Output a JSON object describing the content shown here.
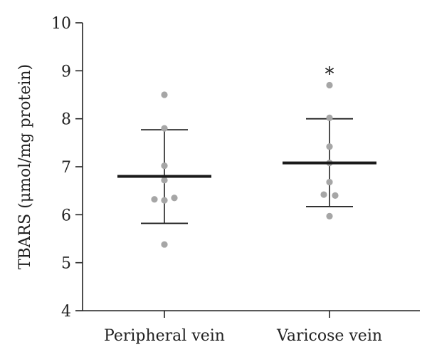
{
  "chart_data": {
    "type": "scatter",
    "ylabel": "TBARS (μmol/mg protein)",
    "ylim": [
      4,
      10
    ],
    "yticks": [
      4,
      5,
      6,
      7,
      8,
      9,
      10
    ],
    "categories": [
      "Peripheral vein",
      "Varicose vein"
    ],
    "groups": [
      {
        "category": "Peripheral vein",
        "points": [
          8.5,
          7.8,
          7.02,
          6.72,
          6.35,
          6.32,
          6.3,
          5.38
        ],
        "mean": 6.8,
        "sd_upper": 7.77,
        "sd_lower": 5.82,
        "annotation": ""
      },
      {
        "category": "Varicose vein",
        "points": [
          8.7,
          8.02,
          7.42,
          7.08,
          6.68,
          6.42,
          6.4,
          5.97
        ],
        "mean": 7.08,
        "sd_upper": 8.0,
        "sd_lower": 6.17,
        "annotation": "*"
      }
    ],
    "colors": {
      "points": "#a6a6a6",
      "mean_line": "#1a1a1a",
      "error_bar": "#222222",
      "axis": "#222222"
    },
    "grid": false
  }
}
